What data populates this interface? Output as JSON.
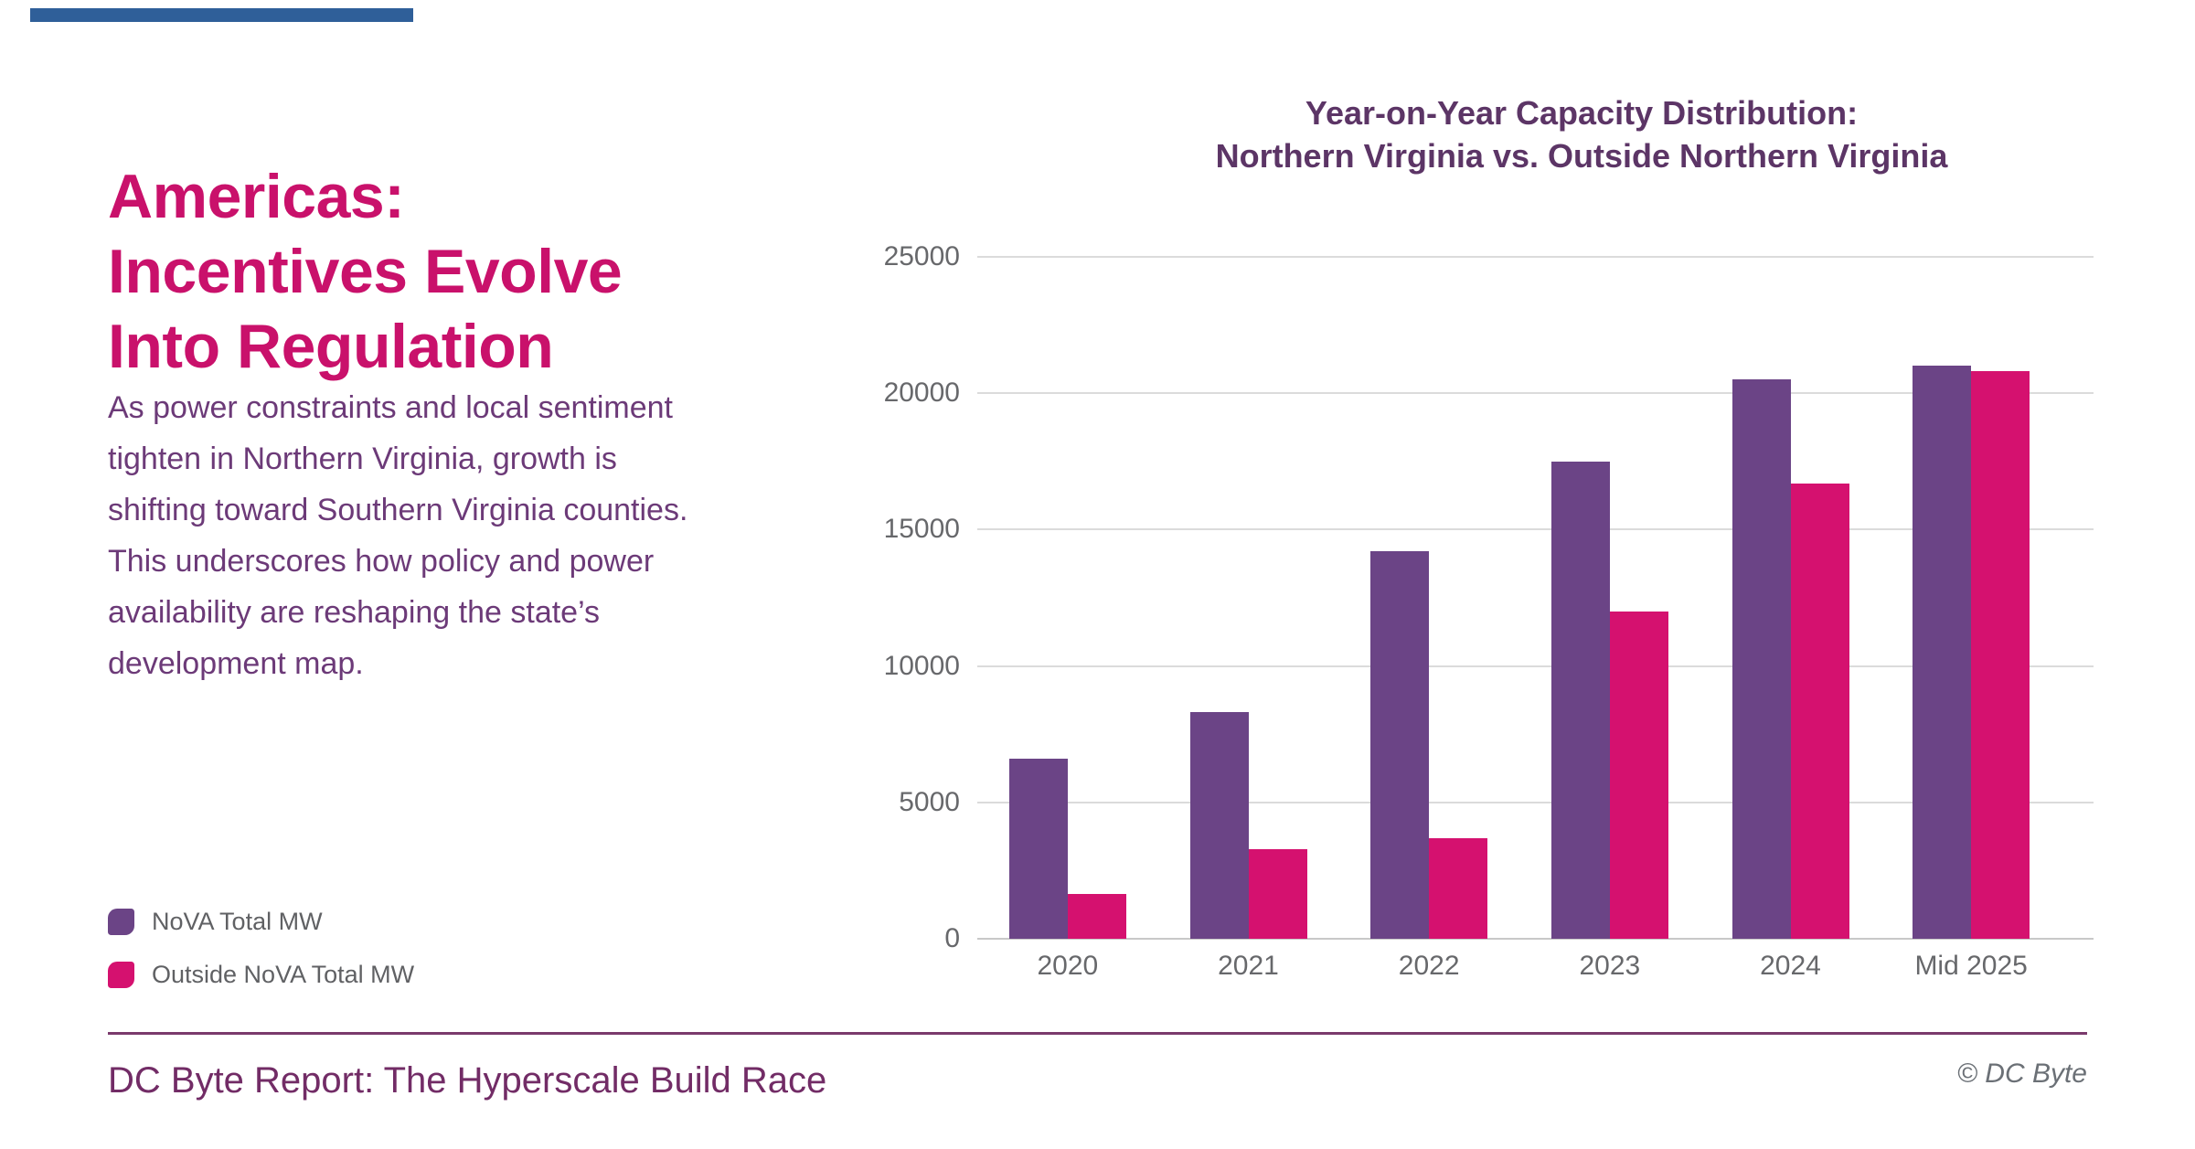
{
  "accent_bar_color": "#2F5F99",
  "brand_colors": {
    "title_pink": "#C9116B",
    "body_purple": "#6C3A78",
    "chart_title_purple": "#5C3566"
  },
  "left_panel": {
    "title_lines": [
      "Americas:",
      "Incentives Evolve",
      "Into Regulation"
    ],
    "body": "As power constraints and local sentiment tighten in Northern Virginia, growth is shifting toward Southern Virginia counties. This underscores how policy and power availability are reshaping the state’s development map."
  },
  "footer": {
    "report_title": "DC Byte Report: The Hyperscale Build Race",
    "copyright": "© DC Byte"
  },
  "chart_data": {
    "type": "bar",
    "title_lines": [
      "Year-on-Year Capacity Distribution:",
      "Northern Virginia vs. Outside Northern Virginia"
    ],
    "categories": [
      "2020",
      "2021",
      "2022",
      "2023",
      "2024",
      "Mid 2025"
    ],
    "series": [
      {
        "name": "NoVA Total MW",
        "color": "#6B4486",
        "values": [
          6600,
          8300,
          14200,
          17500,
          20500,
          21000
        ]
      },
      {
        "name": "Outside NoVA Total MW",
        "color": "#D5116F",
        "values": [
          1650,
          3300,
          3700,
          12000,
          16700,
          20800
        ]
      }
    ],
    "xlabel": "",
    "ylabel": "",
    "ylim": [
      0,
      25000
    ],
    "y_ticks": [
      25000,
      20000,
      15000,
      10000,
      5000,
      0
    ],
    "grid": true,
    "legend_position": "bottom-left"
  }
}
